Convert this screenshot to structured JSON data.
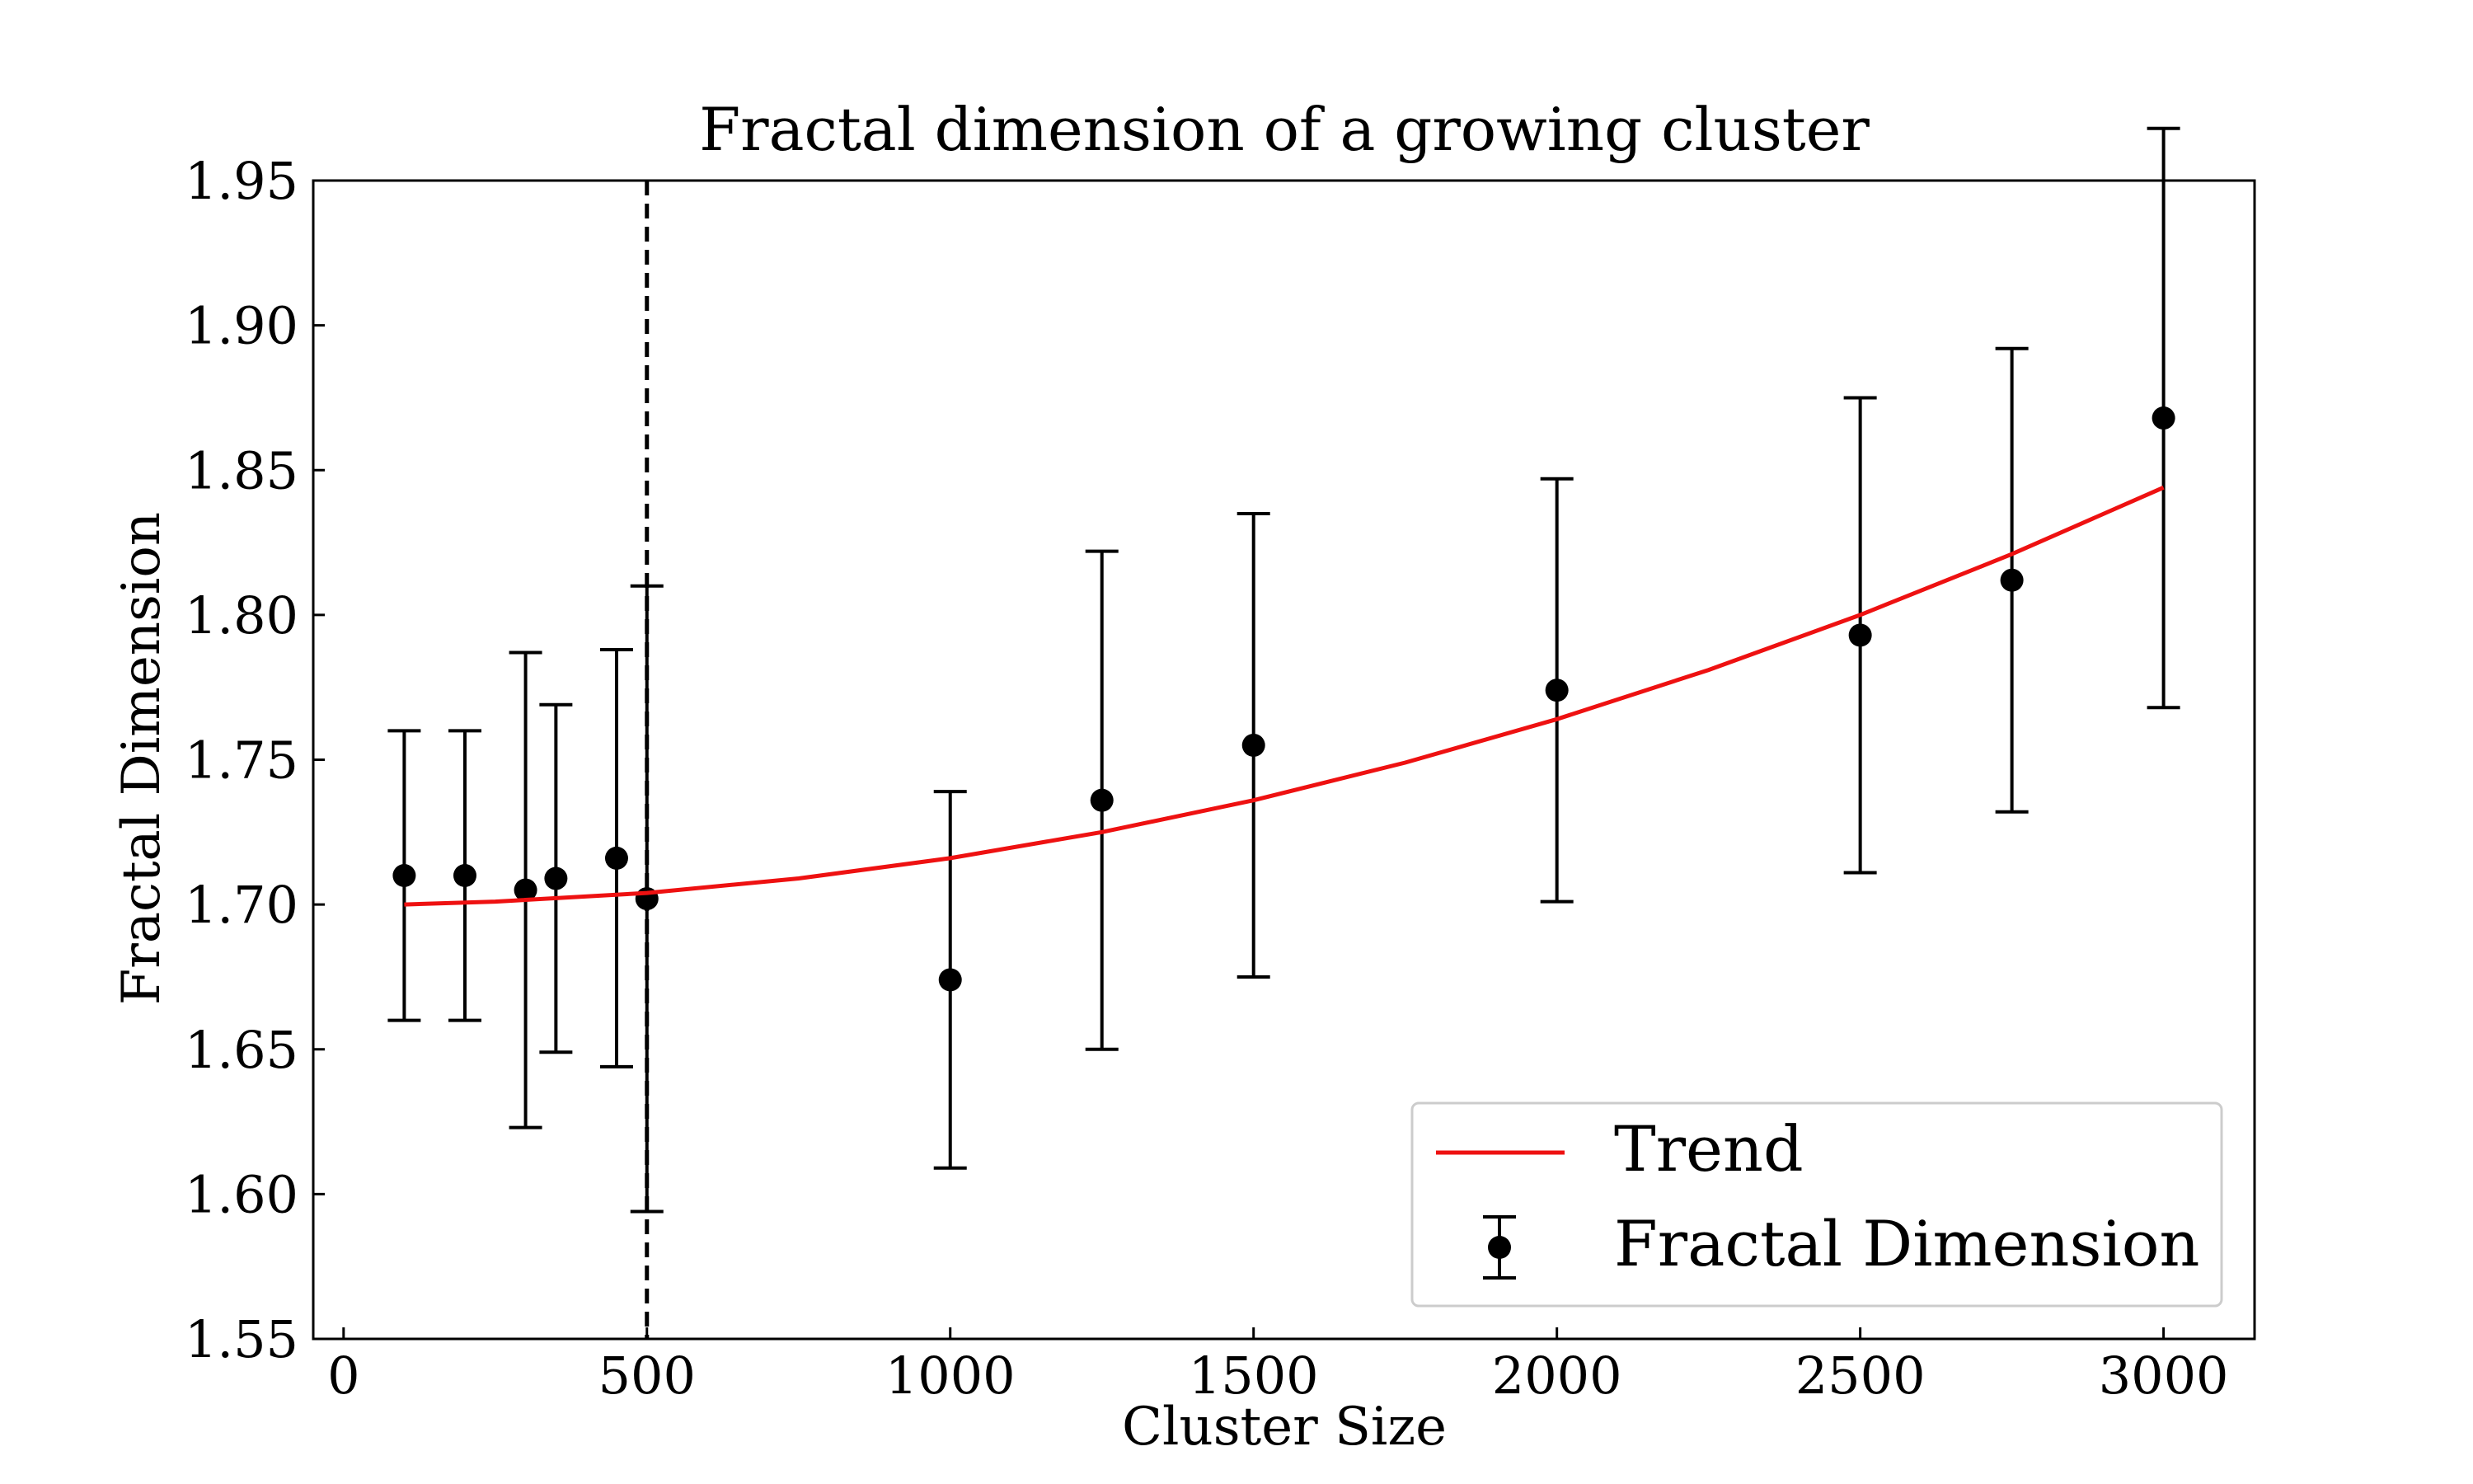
{
  "chart_data": {
    "type": "scatter",
    "title": "Fractal dimension of a growing cluster",
    "xlabel": "Cluster Size",
    "ylabel": "Fractal Dimension",
    "xlim": [
      -50,
      3150
    ],
    "ylim": [
      1.55,
      1.95
    ],
    "x_ticks": [
      0,
      500,
      1000,
      1500,
      2000,
      2500,
      3000
    ],
    "y_ticks": [
      1.55,
      1.6,
      1.65,
      1.7,
      1.75,
      1.8,
      1.85,
      1.9,
      1.95
    ],
    "grid": false,
    "legend_position": "bottom-right",
    "vertical_reference_line": {
      "x": 500,
      "style": "dashed",
      "color": "#000000"
    },
    "series": [
      {
        "name": "Fractal Dimension",
        "kind": "errorbar",
        "color": "#000000",
        "x": [
          100,
          200,
          300,
          350,
          450,
          500,
          1000,
          1250,
          1500,
          2000,
          2500,
          2750,
          3000
        ],
        "y": [
          1.71,
          1.71,
          1.705,
          1.709,
          1.716,
          1.702,
          1.674,
          1.736,
          1.755,
          1.774,
          1.793,
          1.812,
          1.868
        ],
        "err": [
          0.05,
          0.05,
          0.082,
          0.06,
          0.072,
          0.108,
          0.065,
          0.086,
          0.08,
          0.073,
          0.082,
          0.08,
          0.1
        ]
      },
      {
        "name": "Trend",
        "kind": "line",
        "color": "#ee1111",
        "x": [
          100,
          250,
          500,
          750,
          1000,
          1250,
          1500,
          1750,
          2000,
          2250,
          2500,
          2750,
          3000
        ],
        "y": [
          1.7,
          1.701,
          1.704,
          1.709,
          1.716,
          1.725,
          1.736,
          1.749,
          1.764,
          1.781,
          1.8,
          1.821,
          1.844
        ]
      }
    ]
  }
}
